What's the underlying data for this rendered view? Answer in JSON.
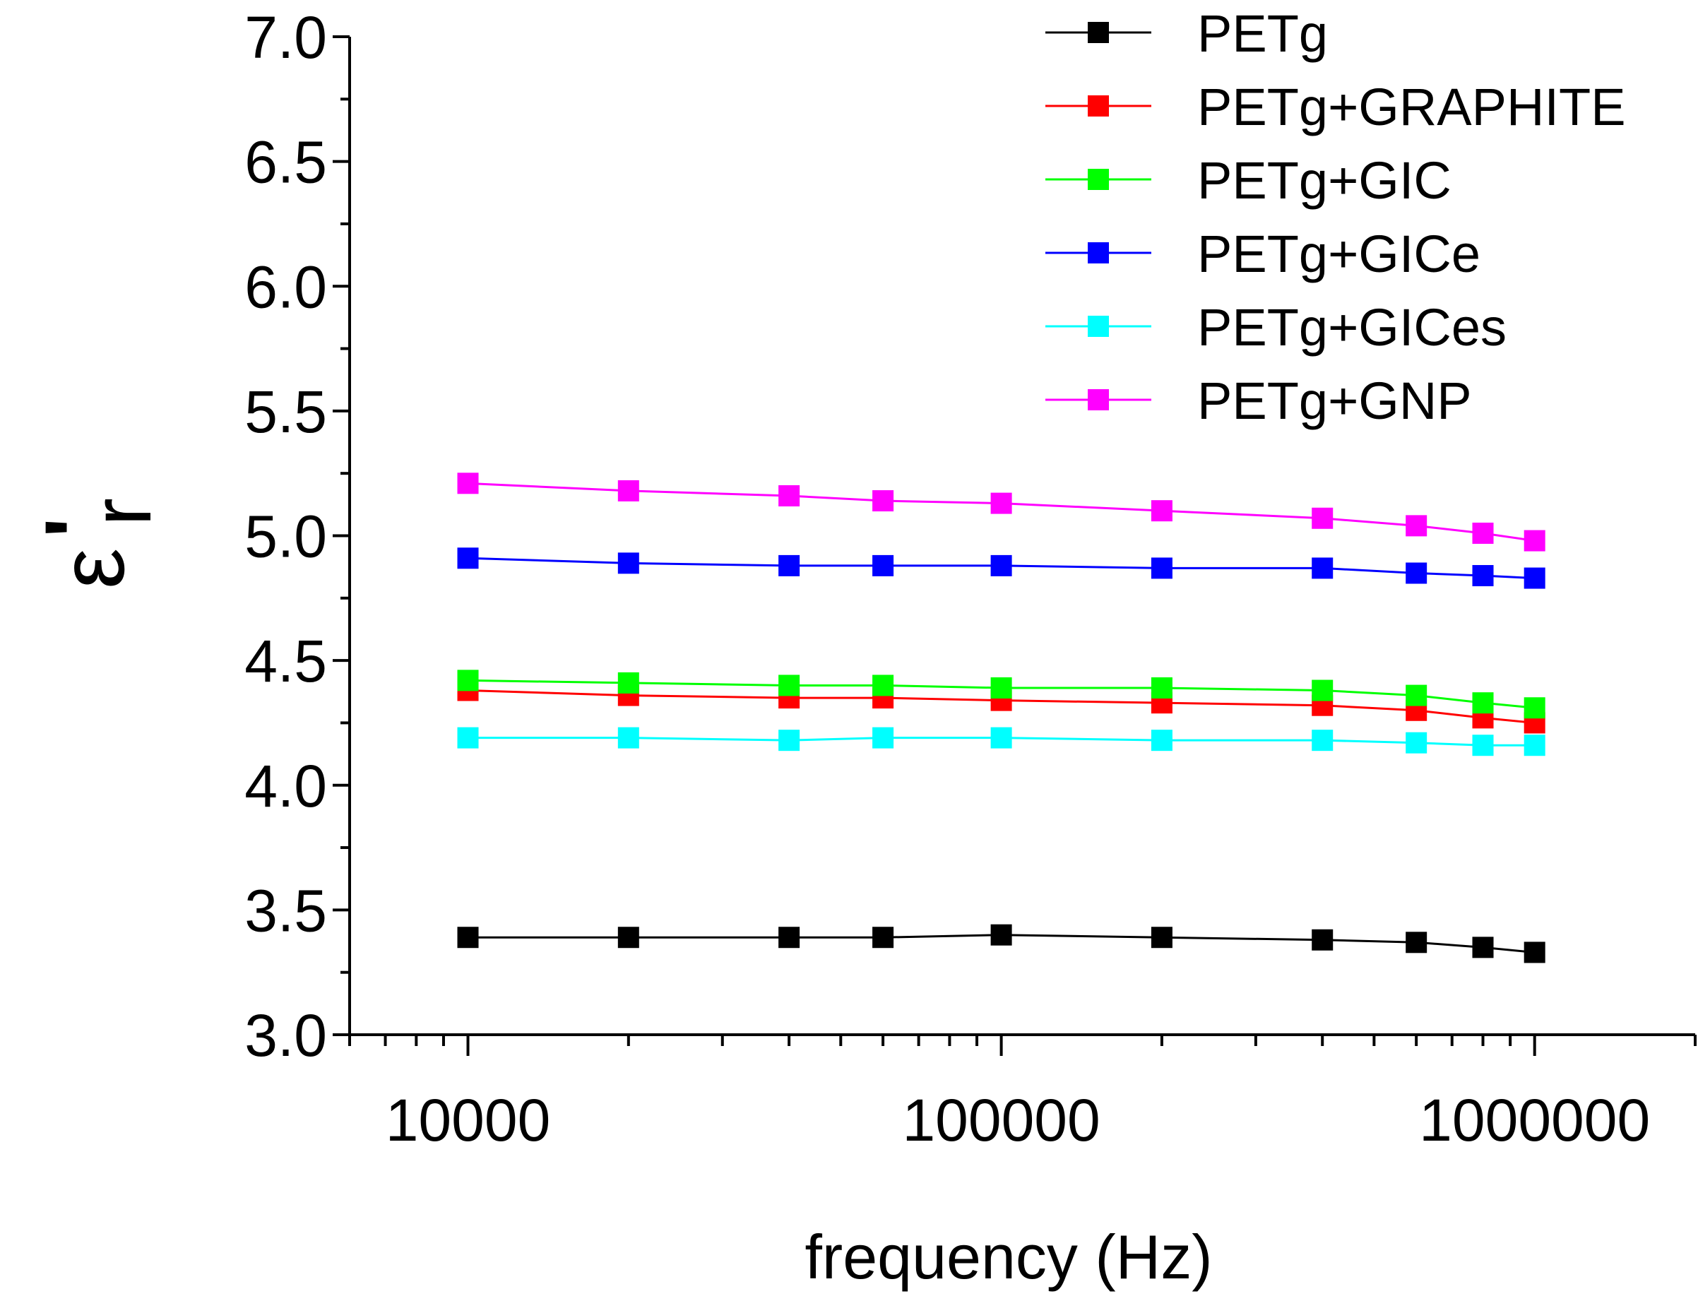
{
  "chart_data": {
    "type": "line",
    "title": "",
    "xlabel": "frequency (Hz)",
    "ylabel": "ε'r",
    "ylabel_parts": {
      "symbol": "ε",
      "prime": "'",
      "subscript": "r"
    },
    "x_scale": "log",
    "xlim": [
      6000,
      2000000
    ],
    "ylim": [
      3.0,
      7.0
    ],
    "x_ticks": [
      10000,
      100000,
      1000000
    ],
    "x_tick_labels": [
      "10000",
      "100000",
      "1000000"
    ],
    "y_ticks": [
      3.0,
      3.5,
      4.0,
      4.5,
      5.0,
      5.5,
      6.0,
      6.5,
      7.0
    ],
    "y_tick_labels": [
      "3.0",
      "3.5",
      "4.0",
      "4.5",
      "5.0",
      "5.5",
      "6.0",
      "6.5",
      "7.0"
    ],
    "grid": false,
    "legend_position": "top-right",
    "x": [
      10000,
      20000,
      40000,
      60000,
      100000,
      200000,
      400000,
      600000,
      800000,
      1000000
    ],
    "series": [
      {
        "name": "PETg",
        "color": "#000000",
        "marker": "square",
        "values": [
          3.39,
          3.39,
          3.39,
          3.39,
          3.4,
          3.39,
          3.38,
          3.37,
          3.35,
          3.33
        ]
      },
      {
        "name": "PETg+GRAPHITE",
        "color": "#ff0000",
        "marker": "square",
        "values": [
          4.38,
          4.36,
          4.35,
          4.35,
          4.34,
          4.33,
          4.32,
          4.3,
          4.27,
          4.25
        ]
      },
      {
        "name": "PETg+GIC",
        "color": "#00ff00",
        "marker": "square",
        "values": [
          4.42,
          4.41,
          4.4,
          4.4,
          4.39,
          4.39,
          4.38,
          4.36,
          4.33,
          4.31
        ]
      },
      {
        "name": "PETg+GICe",
        "color": "#0000ff",
        "marker": "square",
        "values": [
          4.91,
          4.89,
          4.88,
          4.88,
          4.88,
          4.87,
          4.87,
          4.85,
          4.84,
          4.83
        ]
      },
      {
        "name": "PETg+GICes",
        "color": "#00ffff",
        "marker": "square",
        "values": [
          4.19,
          4.19,
          4.18,
          4.19,
          4.19,
          4.18,
          4.18,
          4.17,
          4.16,
          4.16
        ]
      },
      {
        "name": "PETg+GNP",
        "color": "#ff00ff",
        "marker": "square",
        "values": [
          5.21,
          5.18,
          5.16,
          5.14,
          5.13,
          5.1,
          5.07,
          5.04,
          5.01,
          4.98
        ]
      }
    ]
  }
}
